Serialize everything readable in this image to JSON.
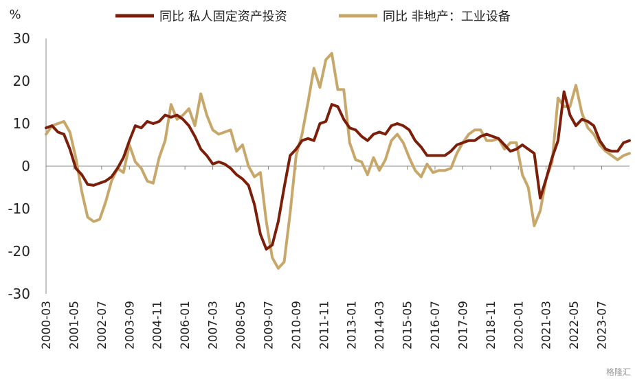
{
  "chart_data": {
    "type": "line",
    "unit_label": "%",
    "ylim": [
      -30,
      30
    ],
    "y_ticks": [
      30,
      20,
      10,
      0,
      -10,
      -20,
      -30
    ],
    "grid": false,
    "legend_position": "top",
    "x_ticks": [
      "2000-03",
      "2001-05",
      "2002-07",
      "2003-09",
      "2004-11",
      "2006-01",
      "2007-03",
      "2008-05",
      "2009-07",
      "2010-09",
      "2011-11",
      "2013-01",
      "2014-03",
      "2015-05",
      "2016-07",
      "2017-09",
      "2018-11",
      "2020-01",
      "2021-03",
      "2022-05",
      "2023-07"
    ],
    "series": [
      {
        "name": "同比 私人固定资产投资",
        "color": "#7B1E0A",
        "points": [
          [
            "2000-03",
            9
          ],
          [
            "2000-06",
            9.5
          ],
          [
            "2000-09",
            8
          ],
          [
            "2000-12",
            7.5
          ],
          [
            "2001-03",
            4
          ],
          [
            "2001-06",
            -0.5
          ],
          [
            "2001-09",
            -2
          ],
          [
            "2001-12",
            -4.3
          ],
          [
            "2002-03",
            -4.5
          ],
          [
            "2002-06",
            -4
          ],
          [
            "2002-09",
            -3.5
          ],
          [
            "2002-12",
            -2.5
          ],
          [
            "2003-03",
            -0.5
          ],
          [
            "2003-06",
            2
          ],
          [
            "2003-09",
            6
          ],
          [
            "2003-12",
            9.5
          ],
          [
            "2004-03",
            9
          ],
          [
            "2004-06",
            10.5
          ],
          [
            "2004-09",
            10
          ],
          [
            "2004-12",
            10.5
          ],
          [
            "2005-03",
            12
          ],
          [
            "2005-06",
            11.5
          ],
          [
            "2005-09",
            12
          ],
          [
            "2005-12",
            11
          ],
          [
            "2006-03",
            9.5
          ],
          [
            "2006-06",
            7
          ],
          [
            "2006-09",
            4
          ],
          [
            "2006-12",
            2.5
          ],
          [
            "2007-03",
            0.5
          ],
          [
            "2007-06",
            1
          ],
          [
            "2007-09",
            0.5
          ],
          [
            "2007-12",
            -0.5
          ],
          [
            "2008-03",
            -2
          ],
          [
            "2008-06",
            -3
          ],
          [
            "2008-09",
            -4.5
          ],
          [
            "2008-12",
            -9
          ],
          [
            "2009-03",
            -16
          ],
          [
            "2009-06",
            -19.5
          ],
          [
            "2009-09",
            -18.5
          ],
          [
            "2009-12",
            -13
          ],
          [
            "2010-03",
            -5
          ],
          [
            "2010-06",
            2.5
          ],
          [
            "2010-09",
            4
          ],
          [
            "2010-12",
            6
          ],
          [
            "2011-03",
            6.5
          ],
          [
            "2011-06",
            6
          ],
          [
            "2011-09",
            10
          ],
          [
            "2011-12",
            10.5
          ],
          [
            "2012-03",
            14.5
          ],
          [
            "2012-06",
            14
          ],
          [
            "2012-09",
            11
          ],
          [
            "2012-12",
            9
          ],
          [
            "2013-03",
            8.5
          ],
          [
            "2013-06",
            7
          ],
          [
            "2013-09",
            6
          ],
          [
            "2013-12",
            7.5
          ],
          [
            "2014-03",
            8
          ],
          [
            "2014-06",
            7.5
          ],
          [
            "2014-09",
            9.5
          ],
          [
            "2014-12",
            10
          ],
          [
            "2015-03",
            9.5
          ],
          [
            "2015-06",
            8.5
          ],
          [
            "2015-09",
            6
          ],
          [
            "2015-12",
            4.5
          ],
          [
            "2016-03",
            2.5
          ],
          [
            "2016-06",
            2.5
          ],
          [
            "2016-09",
            2.5
          ],
          [
            "2016-12",
            2.5
          ],
          [
            "2017-03",
            3.5
          ],
          [
            "2017-06",
            5
          ],
          [
            "2017-09",
            5.5
          ],
          [
            "2017-12",
            6
          ],
          [
            "2018-03",
            6
          ],
          [
            "2018-06",
            7
          ],
          [
            "2018-09",
            7.5
          ],
          [
            "2018-12",
            7
          ],
          [
            "2019-03",
            6.5
          ],
          [
            "2019-06",
            5
          ],
          [
            "2019-09",
            3.5
          ],
          [
            "2019-12",
            4
          ],
          [
            "2020-03",
            5
          ],
          [
            "2020-06",
            4
          ],
          [
            "2020-09",
            3
          ],
          [
            "2020-12",
            -7.5
          ],
          [
            "2021-03",
            -3
          ],
          [
            "2021-06",
            2
          ],
          [
            "2021-09",
            6
          ],
          [
            "2021-12",
            17.5
          ],
          [
            "2022-03",
            12
          ],
          [
            "2022-06",
            9.5
          ],
          [
            "2022-09",
            11
          ],
          [
            "2022-12",
            10.5
          ],
          [
            "2023-03",
            9.5
          ],
          [
            "2023-06",
            6
          ],
          [
            "2023-09",
            4
          ],
          [
            "2023-12",
            3.5
          ],
          [
            "2024-03",
            3.5
          ],
          [
            "2024-06",
            5.5
          ],
          [
            "2024-09",
            6
          ]
        ]
      },
      {
        "name": "同比 非地产：工业设备",
        "color": "#C7A86A",
        "points": [
          [
            "2000-03",
            7.5
          ],
          [
            "2000-06",
            9.5
          ],
          [
            "2000-09",
            10
          ],
          [
            "2000-12",
            10.5
          ],
          [
            "2001-03",
            8
          ],
          [
            "2001-06",
            2
          ],
          [
            "2001-09",
            -6
          ],
          [
            "2001-12",
            -12
          ],
          [
            "2002-03",
            -13
          ],
          [
            "2002-06",
            -12.5
          ],
          [
            "2002-09",
            -8.5
          ],
          [
            "2002-12",
            -3.5
          ],
          [
            "2003-03",
            -0.5
          ],
          [
            "2003-06",
            -1.5
          ],
          [
            "2003-09",
            5
          ],
          [
            "2003-12",
            1
          ],
          [
            "2004-03",
            -0.5
          ],
          [
            "2004-06",
            -3.5
          ],
          [
            "2004-09",
            -4
          ],
          [
            "2004-12",
            2
          ],
          [
            "2005-03",
            6
          ],
          [
            "2005-06",
            14.5
          ],
          [
            "2005-09",
            11
          ],
          [
            "2005-12",
            12
          ],
          [
            "2006-03",
            13.5
          ],
          [
            "2006-06",
            9.5
          ],
          [
            "2006-09",
            17
          ],
          [
            "2006-12",
            12
          ],
          [
            "2007-03",
            8.5
          ],
          [
            "2007-06",
            7.5
          ],
          [
            "2007-09",
            8
          ],
          [
            "2007-12",
            8.5
          ],
          [
            "2008-03",
            3.5
          ],
          [
            "2008-06",
            5
          ],
          [
            "2008-09",
            0
          ],
          [
            "2008-12",
            -2.5
          ],
          [
            "2009-03",
            -1.5
          ],
          [
            "2009-06",
            -13
          ],
          [
            "2009-09",
            -21.5
          ],
          [
            "2009-12",
            -24
          ],
          [
            "2010-03",
            -22.5
          ],
          [
            "2010-06",
            -11
          ],
          [
            "2010-09",
            2.5
          ],
          [
            "2010-12",
            7.5
          ],
          [
            "2011-03",
            15
          ],
          [
            "2011-06",
            23
          ],
          [
            "2011-09",
            18.5
          ],
          [
            "2011-12",
            25
          ],
          [
            "2012-03",
            26.5
          ],
          [
            "2012-06",
            18
          ],
          [
            "2012-09",
            18
          ],
          [
            "2012-12",
            5.5
          ],
          [
            "2013-03",
            1.5
          ],
          [
            "2013-06",
            1
          ],
          [
            "2013-09",
            -2
          ],
          [
            "2013-12",
            2
          ],
          [
            "2014-03",
            -1
          ],
          [
            "2014-06",
            1.5
          ],
          [
            "2014-09",
            6
          ],
          [
            "2014-12",
            7.5
          ],
          [
            "2015-03",
            5.5
          ],
          [
            "2015-06",
            2
          ],
          [
            "2015-09",
            -1
          ],
          [
            "2015-12",
            -2.5
          ],
          [
            "2016-03",
            0.5
          ],
          [
            "2016-06",
            -1.5
          ],
          [
            "2016-09",
            -1
          ],
          [
            "2016-12",
            -1
          ],
          [
            "2017-03",
            -0.5
          ],
          [
            "2017-06",
            3
          ],
          [
            "2017-09",
            5.5
          ],
          [
            "2017-12",
            7.5
          ],
          [
            "2018-03",
            8.5
          ],
          [
            "2018-06",
            8.5
          ],
          [
            "2018-09",
            6
          ],
          [
            "2018-12",
            6
          ],
          [
            "2019-03",
            6.5
          ],
          [
            "2019-06",
            4
          ],
          [
            "2019-09",
            5.5
          ],
          [
            "2019-12",
            5.5
          ],
          [
            "2020-03",
            -2
          ],
          [
            "2020-06",
            -5
          ],
          [
            "2020-09",
            -14
          ],
          [
            "2020-12",
            -10.5
          ],
          [
            "2021-03",
            -3
          ],
          [
            "2021-06",
            1
          ],
          [
            "2021-09",
            16
          ],
          [
            "2021-12",
            14
          ],
          [
            "2022-03",
            14
          ],
          [
            "2022-06",
            19
          ],
          [
            "2022-09",
            12.5
          ],
          [
            "2022-12",
            9
          ],
          [
            "2023-03",
            7.5
          ],
          [
            "2023-06",
            5
          ],
          [
            "2023-09",
            3.5
          ],
          [
            "2023-12",
            2.5
          ],
          [
            "2024-03",
            1.5
          ],
          [
            "2024-06",
            2.5
          ],
          [
            "2024-09",
            3
          ]
        ]
      }
    ]
  },
  "watermark": "格隆汇"
}
